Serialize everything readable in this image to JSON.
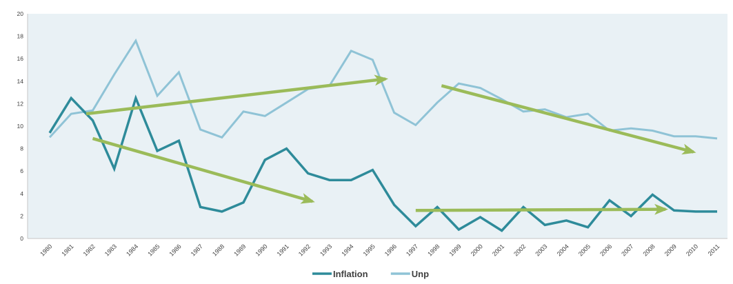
{
  "chart_data": {
    "type": "line",
    "title": "",
    "xlabel": "",
    "ylabel": "",
    "categories": [
      "1980",
      "1981",
      "1982",
      "1983",
      "1984",
      "1985",
      "1986",
      "1987",
      "1988",
      "1989",
      "1990",
      "1991",
      "1992",
      "1993",
      "1994",
      "1995",
      "1996",
      "1997",
      "1998",
      "1999",
      "2000",
      "2001",
      "2002",
      "2003",
      "2004",
      "2005",
      "2006",
      "2007",
      "2008",
      "2009",
      "2010",
      "2011"
    ],
    "ylim": [
      0,
      20
    ],
    "yticks": [
      "0",
      "2",
      "4",
      "6",
      "8",
      "10",
      "12",
      "14",
      "16",
      "18",
      "20"
    ],
    "grid": false,
    "legend_position": "bottom",
    "series": [
      {
        "name": "Inflation",
        "color": "#2e8b9a",
        "values": [
          9.4,
          12.5,
          10.5,
          6.2,
          12.5,
          7.8,
          8.7,
          2.8,
          2.4,
          3.2,
          7.0,
          8.0,
          5.8,
          5.2,
          5.2,
          6.1,
          3.0,
          1.1,
          2.8,
          0.8,
          1.9,
          0.7,
          2.8,
          1.2,
          1.6,
          1.0,
          3.4,
          2.0,
          3.9,
          2.5,
          2.4,
          2.4
        ]
      },
      {
        "name": "Unp",
        "color": "#8fc3d6",
        "values": [
          9.0,
          11.1,
          11.4,
          14.6,
          17.6,
          12.7,
          14.8,
          9.7,
          9.0,
          11.3,
          10.9,
          12.1,
          13.3,
          13.6,
          16.7,
          15.9,
          11.2,
          10.1,
          12.1,
          13.8,
          13.4,
          12.4,
          11.3,
          11.5,
          10.8,
          11.1,
          9.6,
          9.8,
          9.6,
          9.1,
          9.1,
          8.9
        ]
      }
    ],
    "annotations": [
      {
        "type": "trend-arrow",
        "color": "#9bbb59",
        "from": {
          "x": 1982.0,
          "y": 8.9
        },
        "to": {
          "x": 1992.2,
          "y": 3.3
        }
      },
      {
        "type": "trend-arrow",
        "color": "#9bbb59",
        "from": {
          "x": 1981.7,
          "y": 11.1
        },
        "to": {
          "x": 1995.6,
          "y": 14.2
        }
      },
      {
        "type": "trend-arrow",
        "color": "#9bbb59",
        "from": {
          "x": 1998.2,
          "y": 13.6
        },
        "to": {
          "x": 2009.9,
          "y": 7.7
        }
      },
      {
        "type": "trend-arrow",
        "color": "#9bbb59",
        "from": {
          "x": 1997.0,
          "y": 2.5
        },
        "to": {
          "x": 2008.6,
          "y": 2.6
        }
      }
    ]
  }
}
